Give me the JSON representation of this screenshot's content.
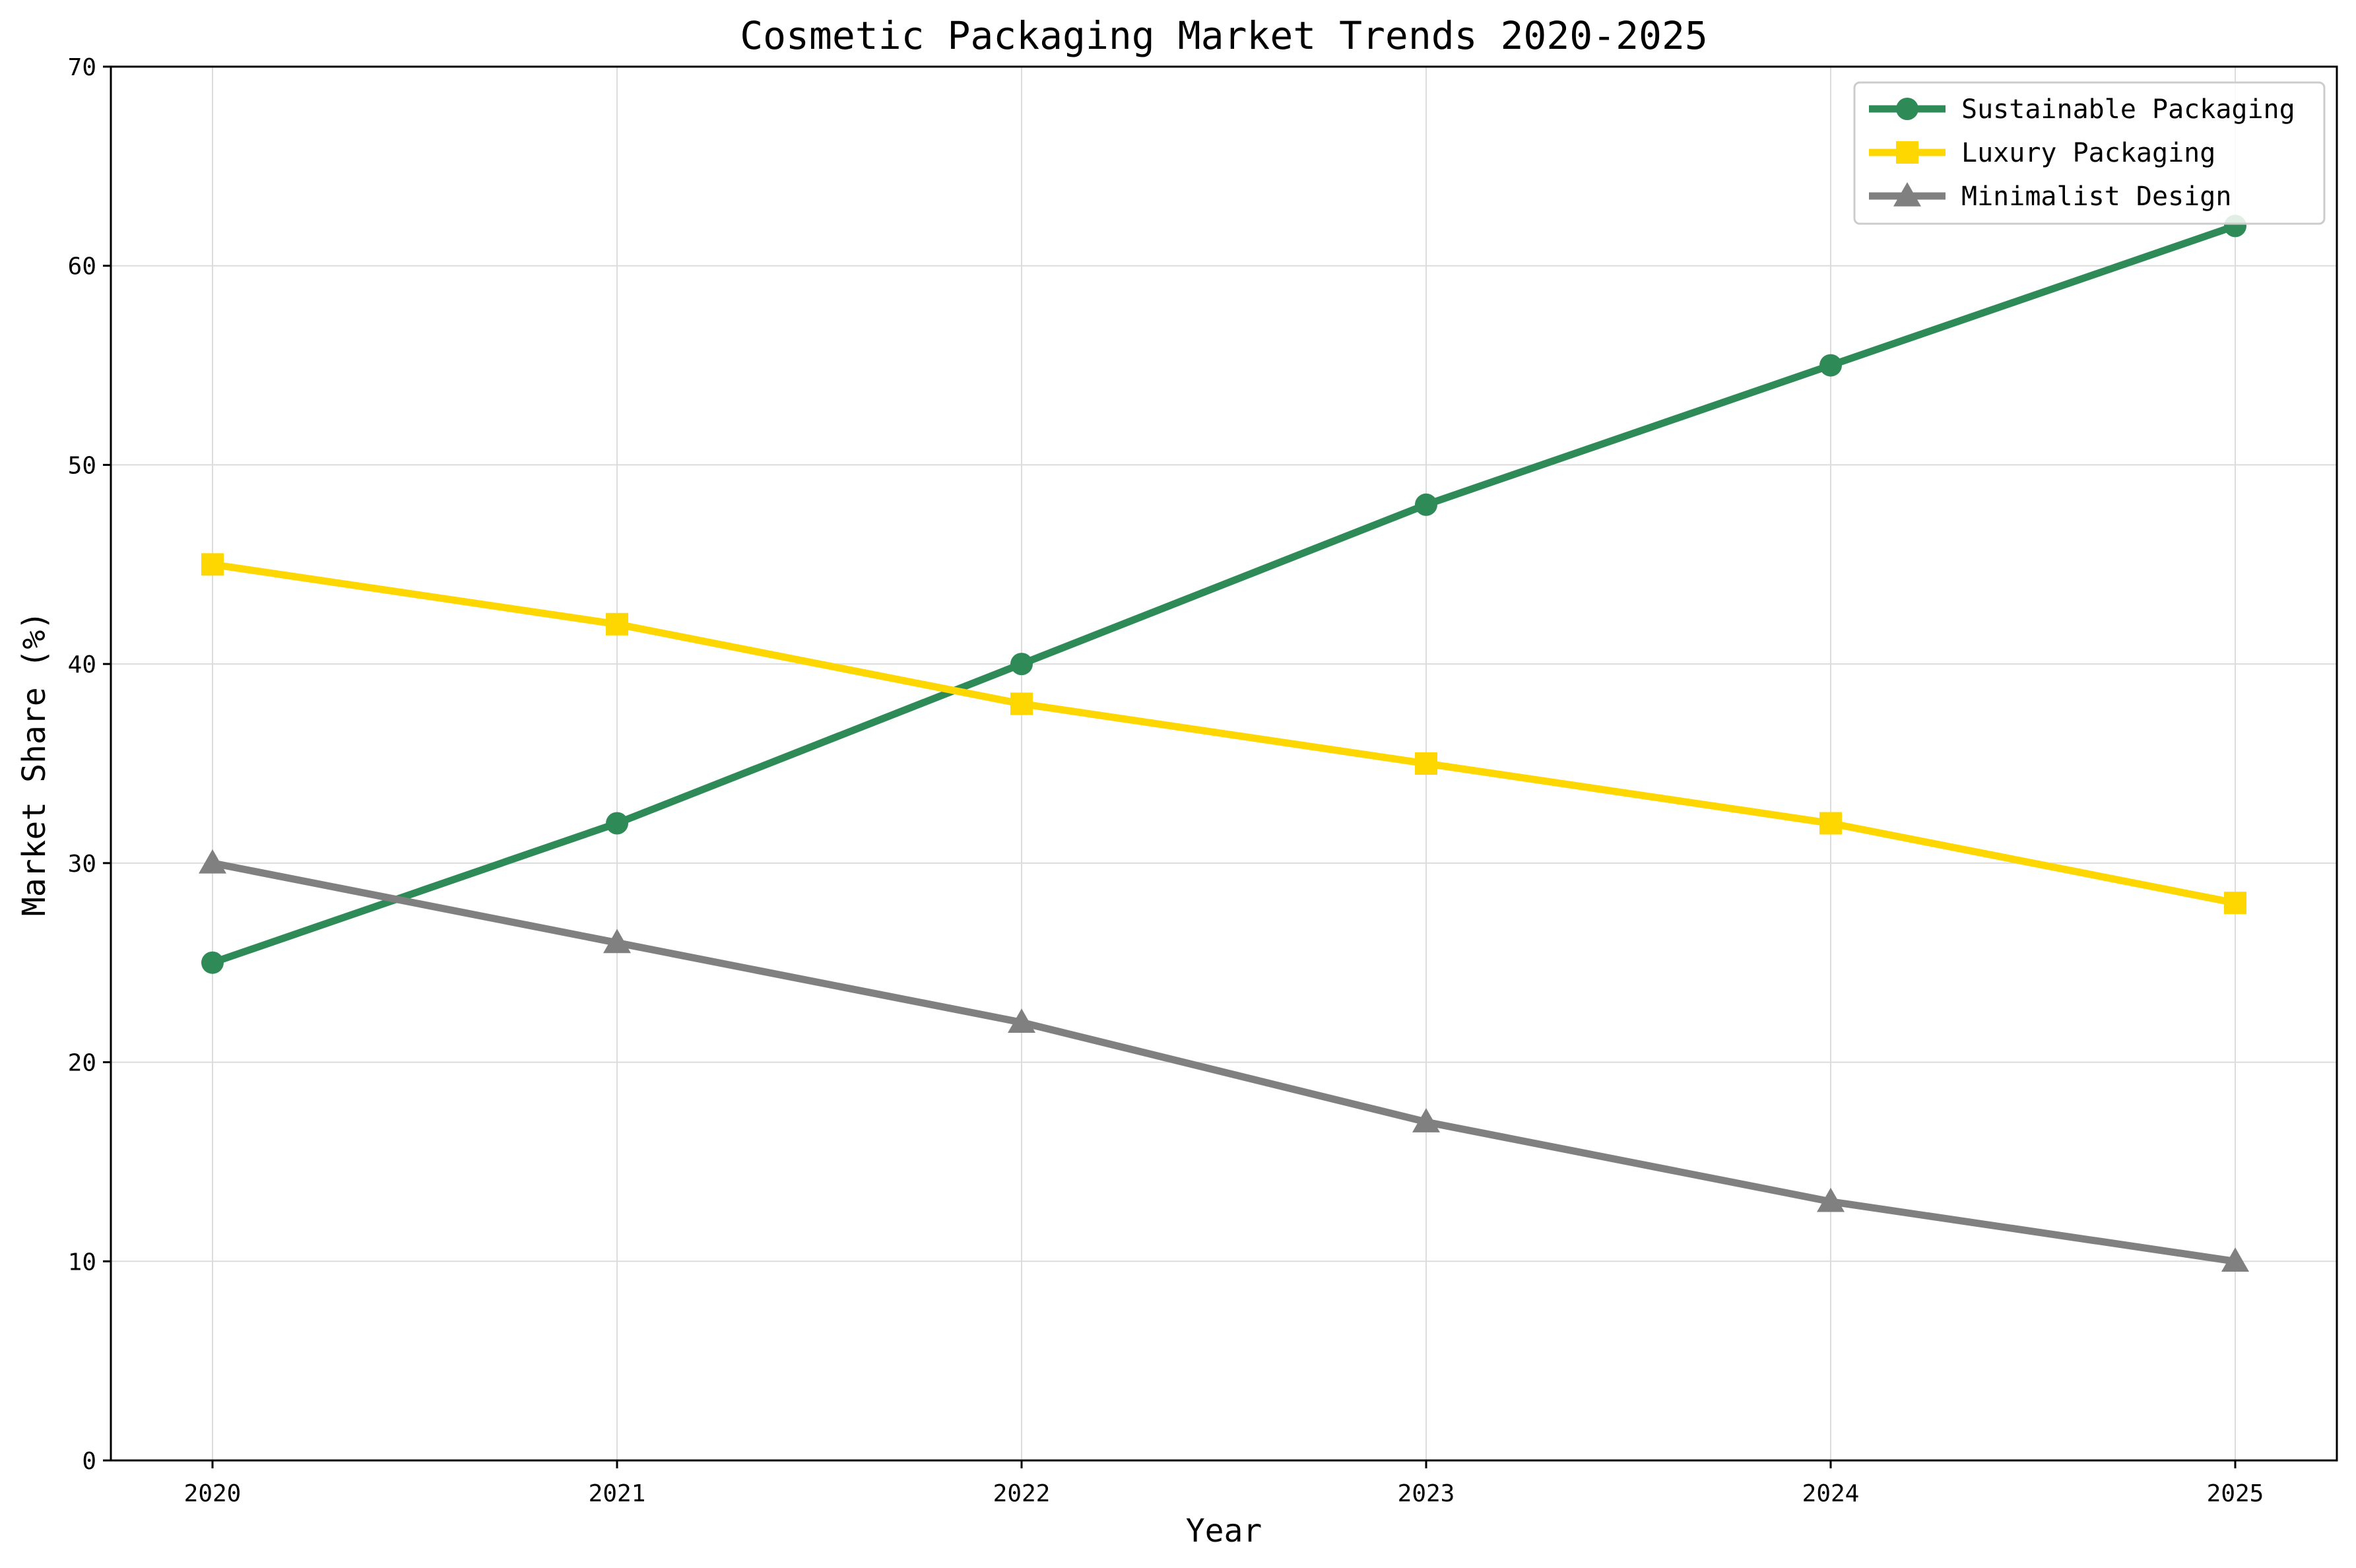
{
  "chart_data": {
    "type": "line",
    "title": "Cosmetic Packaging Market Trends 2020-2025",
    "xlabel": "Year",
    "ylabel": "Market Share (%)",
    "x": [
      "2020",
      "2021",
      "2022",
      "2023",
      "2024",
      "2025"
    ],
    "ylim": [
      0,
      70
    ],
    "yticks": [
      0,
      10,
      20,
      30,
      40,
      50,
      60,
      70
    ],
    "grid": true,
    "legend_position": "top-right",
    "series": [
      {
        "name": "Sustainable Packaging",
        "color": "#2e8b57",
        "marker": "circle",
        "values": [
          25,
          32,
          40,
          48,
          55,
          62
        ]
      },
      {
        "name": "Luxury Packaging",
        "color": "#ffd700",
        "marker": "square",
        "values": [
          45,
          42,
          38,
          35,
          32,
          28
        ]
      },
      {
        "name": "Minimalist Design",
        "color": "#808080",
        "marker": "triangle",
        "values": [
          30,
          26,
          22,
          17,
          13,
          10
        ]
      }
    ]
  }
}
